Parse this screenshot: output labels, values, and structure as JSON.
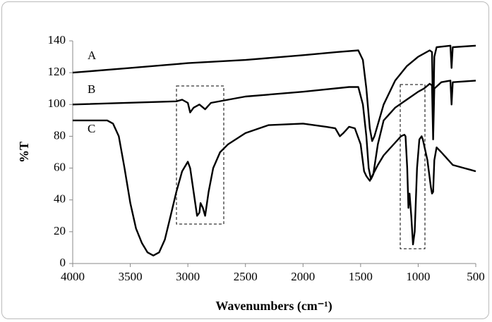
{
  "chart_data": {
    "type": "line",
    "xlabel": "Wavenumbers (cm⁻¹)",
    "ylabel": "%T",
    "xlim": [
      4000,
      500
    ],
    "xticks": [
      4000,
      3500,
      3000,
      2500,
      2000,
      1500,
      1000,
      500
    ],
    "ylim": [
      0,
      140
    ],
    "yticks": [
      0,
      20,
      40,
      60,
      80,
      100,
      120,
      140
    ],
    "grid": false,
    "series": [
      {
        "name": "A",
        "color": "#000000",
        "x": [
          4000,
          3500,
          3000,
          2500,
          2000,
          1700,
          1520,
          1480,
          1450,
          1420,
          1400,
          1380,
          1300,
          1200,
          1100,
          1000,
          900,
          880,
          870,
          860,
          840,
          720,
          710,
          700,
          500
        ],
        "values": [
          120,
          123,
          126,
          128,
          131,
          133,
          134,
          128,
          110,
          85,
          77,
          80,
          100,
          115,
          124,
          130,
          134,
          133,
          88,
          130,
          136,
          137,
          123,
          136,
          137
        ]
      },
      {
        "name": "B",
        "color": "#000000",
        "x": [
          4000,
          3100,
          3050,
          3000,
          2980,
          2950,
          2900,
          2850,
          2800,
          2500,
          2000,
          1600,
          1520,
          1480,
          1450,
          1430,
          1410,
          1390,
          1350,
          1300,
          1200,
          1100,
          1000,
          950,
          900,
          880,
          870,
          860,
          800,
          720,
          710,
          700,
          500
        ],
        "values": [
          100,
          102,
          103,
          101,
          95,
          98,
          100,
          97,
          101,
          105,
          108,
          111,
          111,
          100,
          80,
          60,
          53,
          56,
          75,
          90,
          98,
          103,
          108,
          110,
          113,
          112,
          78,
          110,
          114,
          115,
          100,
          114,
          115
        ]
      },
      {
        "name": "C",
        "color": "#000000",
        "x": [
          4000,
          3700,
          3650,
          3600,
          3550,
          3500,
          3450,
          3400,
          3350,
          3300,
          3250,
          3200,
          3150,
          3100,
          3050,
          3000,
          2980,
          2950,
          2920,
          2900,
          2890,
          2870,
          2850,
          2820,
          2780,
          2720,
          2650,
          2500,
          2300,
          2000,
          1800,
          1720,
          1680,
          1650,
          1600,
          1550,
          1500,
          1470,
          1450,
          1420,
          1400,
          1350,
          1300,
          1250,
          1200,
          1150,
          1120,
          1110,
          1095,
          1085,
          1075,
          1060,
          1045,
          1030,
          1010,
          990,
          970,
          960,
          920,
          890,
          880,
          870,
          860,
          840,
          800,
          700,
          600,
          550,
          500
        ],
        "values": [
          90,
          90,
          88,
          80,
          60,
          38,
          22,
          13,
          7,
          5,
          7,
          15,
          30,
          45,
          58,
          64,
          60,
          45,
          30,
          32,
          38,
          35,
          30,
          45,
          60,
          70,
          75,
          82,
          87,
          88,
          86,
          85,
          80,
          82,
          86,
          85,
          75,
          58,
          55,
          52,
          55,
          62,
          68,
          72,
          76,
          80,
          81,
          80,
          60,
          35,
          44,
          30,
          12,
          20,
          60,
          78,
          80,
          78,
          65,
          48,
          44,
          45,
          65,
          73,
          70,
          62,
          60,
          59,
          58
        ]
      }
    ]
  }
}
